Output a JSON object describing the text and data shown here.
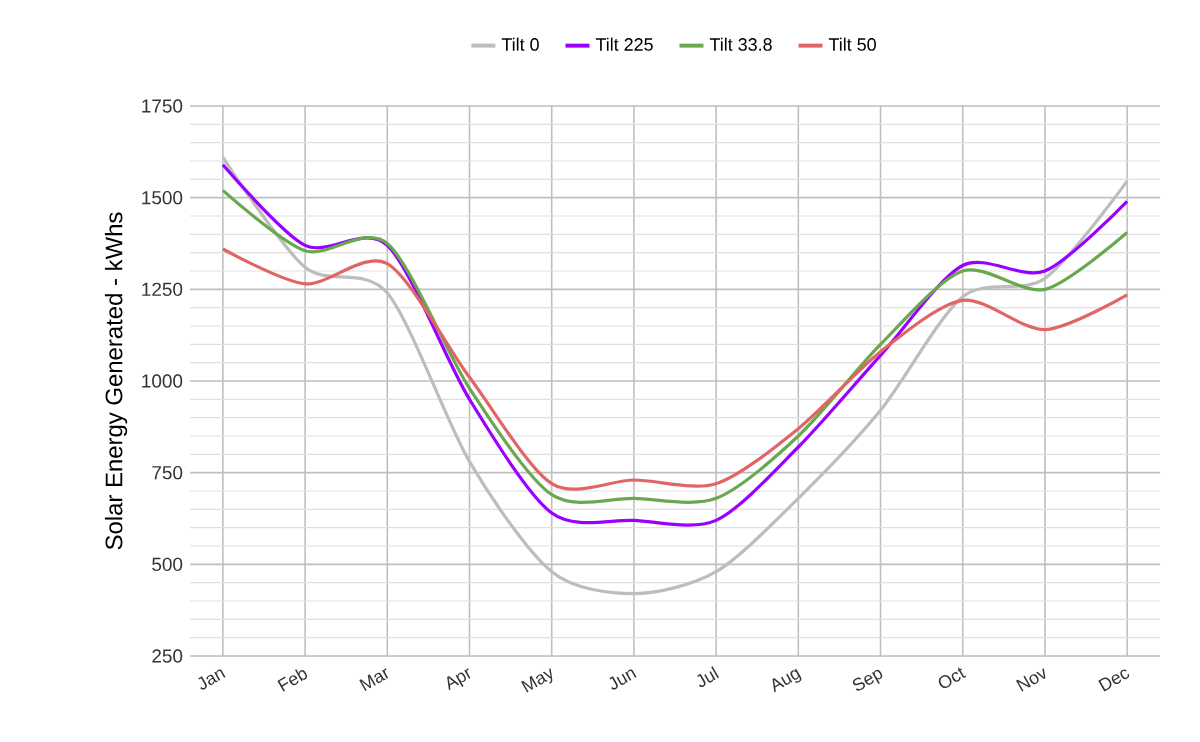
{
  "chart_data": {
    "type": "line",
    "ylabel": "Solar Energy Generated - kWhs",
    "categories": [
      "Jan",
      "Feb",
      "Mar",
      "Apr",
      "May",
      "Jun",
      "Jul",
      "Aug",
      "Sep",
      "Oct",
      "Nov",
      "Dec"
    ],
    "series": [
      {
        "name": "Tilt 0",
        "color": "#bdbdbd",
        "values": [
          1610,
          1310,
          1240,
          780,
          480,
          420,
          480,
          680,
          920,
          1230,
          1280,
          1545
        ]
      },
      {
        "name": "Tilt 225",
        "color": "#9900ff",
        "values": [
          1590,
          1370,
          1370,
          950,
          640,
          620,
          620,
          820,
          1070,
          1315,
          1300,
          1490
        ]
      },
      {
        "name": "Tilt 33.8",
        "color": "#6aa84f",
        "values": [
          1520,
          1355,
          1375,
          980,
          690,
          680,
          680,
          850,
          1100,
          1300,
          1250,
          1405
        ]
      },
      {
        "name": "Tilt 50",
        "color": "#e06666",
        "values": [
          1360,
          1265,
          1320,
          1010,
          720,
          730,
          720,
          870,
          1080,
          1220,
          1140,
          1235
        ]
      }
    ],
    "ylim": [
      250,
      1750
    ],
    "yticks": [
      250,
      {
        "value": 300,
        "label": null
      },
      {
        "value": 350,
        "label": null
      },
      {
        "value": 400,
        "label": null
      },
      {
        "value": 450,
        "label": null
      },
      500,
      {
        "value": 550,
        "label": null
      },
      {
        "value": 600,
        "label": null
      },
      {
        "value": 650,
        "label": null
      },
      {
        "value": 700,
        "label": null
      },
      750,
      {
        "value": 800,
        "label": null
      },
      {
        "value": 850,
        "label": null
      },
      {
        "value": 900,
        "label": null
      },
      {
        "value": 950,
        "label": null
      },
      1000,
      {
        "value": 1050,
        "label": null
      },
      {
        "value": 1100,
        "label": null
      },
      {
        "value": 1150,
        "label": null
      },
      {
        "value": 1200,
        "label": null
      },
      1250,
      {
        "value": 1300,
        "label": null
      },
      {
        "value": 1350,
        "label": null
      },
      {
        "value": 1400,
        "label": null
      },
      {
        "value": 1450,
        "label": null
      },
      1500,
      {
        "value": 1550,
        "label": null
      },
      {
        "value": 1600,
        "label": null
      },
      {
        "value": 1650,
        "label": null
      },
      {
        "value": 1700,
        "label": null
      },
      1750
    ],
    "grid": true,
    "legend": "top",
    "marker": "none",
    "line_style": "solid"
  }
}
